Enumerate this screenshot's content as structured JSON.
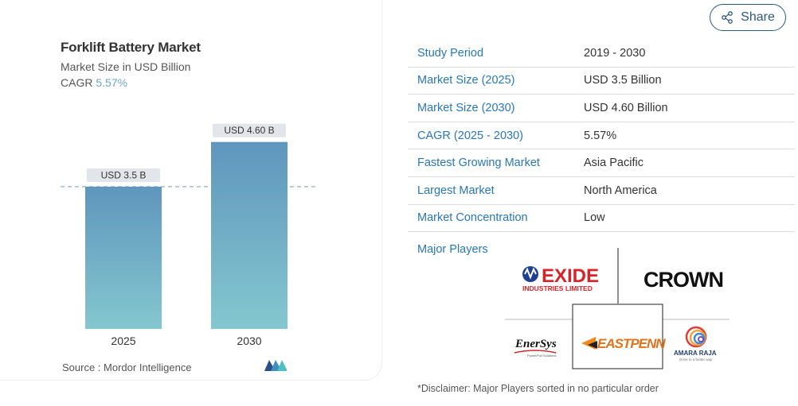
{
  "chart": {
    "title": "Forklift Battery Market",
    "subtitle": "Market Size in USD Billion",
    "cagr_label": "CAGR",
    "cagr_value": "5.57%",
    "source_label": "Source :",
    "source_name": "Mordor Intelligence",
    "bar_labels": [
      "USD 3.5 B",
      "USD 4.60 B"
    ],
    "colors": {
      "bar_top": "#5f96bd",
      "bar_bottom": "#84c7cf",
      "label_bg": "#e2e6ea",
      "dash": "#7fa6c2"
    }
  },
  "chart_data": {
    "type": "bar",
    "categories": [
      "2025",
      "2030"
    ],
    "values": [
      3.5,
      4.6
    ],
    "title": "Forklift Battery Market",
    "ylabel": "Market Size in USD Billion",
    "ylim": [
      0,
      5.2
    ]
  },
  "share": {
    "label": "Share",
    "icon": "share-icon"
  },
  "info": {
    "rows": [
      {
        "label": "Study Period",
        "value": "2019 - 2030"
      },
      {
        "label": "Market Size (2025)",
        "value": "USD 3.5 Billion"
      },
      {
        "label": "Market Size (2030)",
        "value": "USD 4.60 Billion"
      },
      {
        "label": "CAGR (2025 - 2030)",
        "value": "5.57%"
      },
      {
        "label": "Fastest Growing Market",
        "value": "Asia Pacific"
      },
      {
        "label": "Largest Market",
        "value": "North America"
      },
      {
        "label": "Market Concentration",
        "value": "Low"
      }
    ],
    "players_label": "Major Players",
    "players": {
      "exide_main": "EXIDE",
      "exide_sub": "INDUSTRIES LIMITED",
      "crown": "CROWN",
      "enersys": "EnerSys",
      "enersys_tagline": "Power/Full Solutions",
      "eastpenn": "EASTPENN",
      "amararaja": "AMARA RAJA",
      "amararaja_tagline": "Drive to a better way"
    },
    "disclaimer": "*Disclaimer: Major Players sorted in no particular order"
  }
}
